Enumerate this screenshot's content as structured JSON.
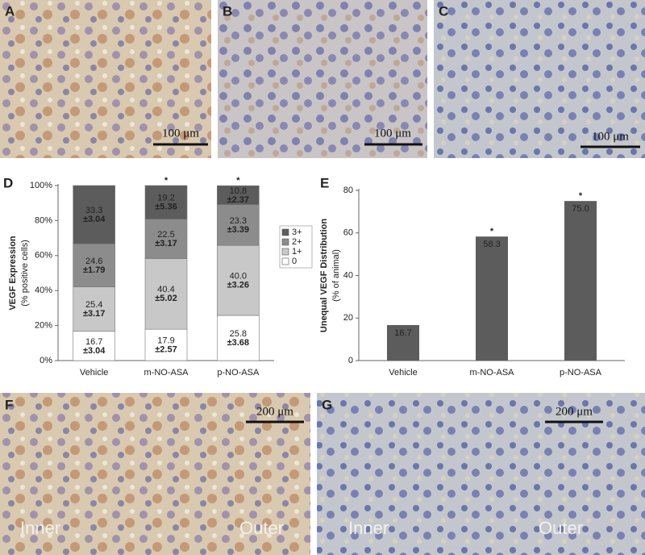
{
  "images": [
    {
      "label": "A",
      "scale": "100 μm"
    },
    {
      "label": "B",
      "scale": "100 μm"
    },
    {
      "label": "C",
      "scale": "100 μm"
    },
    {
      "label": "F",
      "scale": "200 μm",
      "inner": "Inner",
      "outer": "Outer"
    },
    {
      "label": "G",
      "scale": "200 μm",
      "inner": "Inner",
      "outer": "Outer"
    }
  ],
  "chart_data": [
    {
      "type": "bar",
      "stacked": true,
      "panel_label": "D",
      "y_label": "VEGF Expression",
      "y_sublabel": "(% positive cells)",
      "categories": [
        "Vehicle",
        "m-NO-ASA",
        "p-NO-ASA"
      ],
      "significance": [
        null,
        "*",
        "*"
      ],
      "series": [
        {
          "name": "0",
          "color": "#ffffff",
          "values": [
            16.7,
            17.9,
            25.8
          ],
          "errors": [
            3.04,
            2.57,
            3.68
          ],
          "error_labels": [
            "±3.04",
            "±2.57",
            "±3.68"
          ]
        },
        {
          "name": "1+",
          "color": "#c8c8c8",
          "values": [
            25.4,
            40.4,
            40.0
          ],
          "value_labels": [
            "25.4",
            "40.4",
            "40.0"
          ],
          "errors": [
            3.17,
            5.02,
            3.26
          ],
          "error_labels": [
            "±3.17",
            "±5.02",
            "±3.26"
          ]
        },
        {
          "name": "2+",
          "color": "#8c8c8c",
          "values": [
            24.6,
            22.5,
            23.3
          ],
          "errors": [
            1.79,
            3.17,
            3.39
          ],
          "error_labels": [
            "±1.79",
            "±3.17",
            "±3.39"
          ]
        },
        {
          "name": "3+",
          "color": "#5c5c5c",
          "values": [
            33.3,
            19.2,
            10.8
          ],
          "errors": [
            3.04,
            5.36,
            2.37
          ],
          "error_labels": [
            "±3.04",
            "±5.36",
            "±2.37"
          ]
        }
      ],
      "ylim": [
        0,
        100
      ],
      "yticks": [
        {
          "value": 0,
          "label": "0%"
        },
        {
          "value": 20,
          "label": "20%"
        },
        {
          "value": 40,
          "label": "40%"
        },
        {
          "value": 60,
          "label": "60%"
        },
        {
          "value": 80,
          "label": "80%"
        },
        {
          "value": 100,
          "label": "100%"
        }
      ],
      "legend": "right"
    },
    {
      "type": "bar",
      "panel_label": "E",
      "y_label": "Unequal VEGF Distribution",
      "y_sublabel": "(% of animal)",
      "categories": [
        "Vehicle",
        "m-NO-ASA",
        "p-NO-ASA"
      ],
      "significance": [
        null,
        "*",
        "*"
      ],
      "values": [
        16.7,
        58.3,
        75.0
      ],
      "value_labels": [
        "16.7",
        "58.3",
        "75.0"
      ],
      "color": "#5c5c5c",
      "ylim": [
        0,
        80
      ],
      "yticks": [
        0,
        20,
        40,
        60,
        80
      ]
    }
  ]
}
